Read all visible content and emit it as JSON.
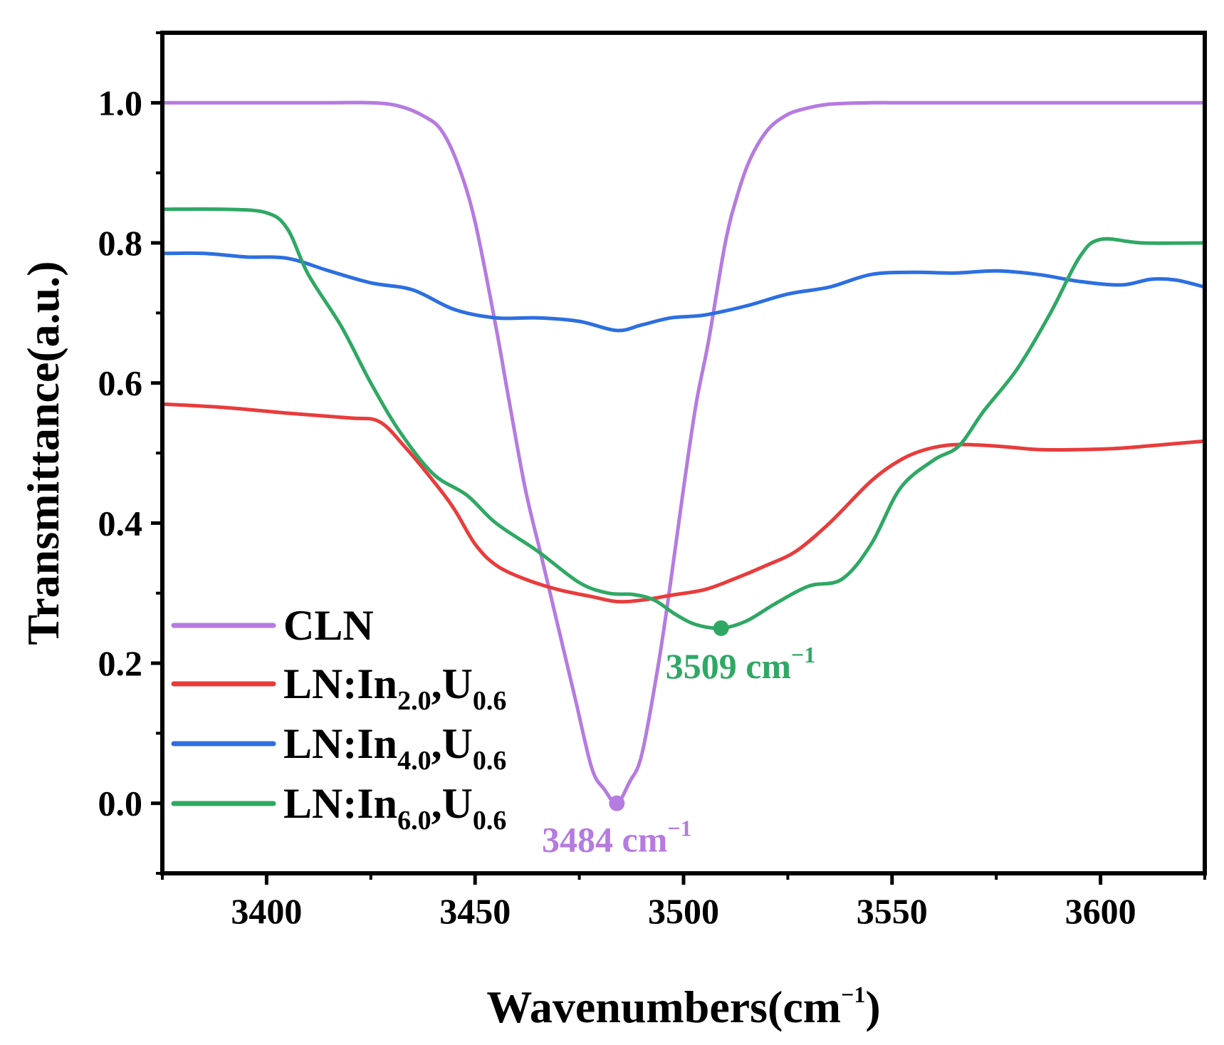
{
  "chart_data": {
    "type": "line",
    "xlabel": "Wavenumbers(cm",
    "xlabel_sup": "−1",
    "xlabel_close": ")",
    "ylabel": "Transmittance(a.u.)",
    "xlim": [
      3375,
      3625
    ],
    "ylim": [
      -0.1,
      1.1
    ],
    "xticks": [
      3400,
      3450,
      3500,
      3550,
      3600
    ],
    "xtick_labels": [
      "3400",
      "3450",
      "3500",
      "3550",
      "3600"
    ],
    "yticks": [
      0.0,
      0.2,
      0.4,
      0.6,
      0.8,
      1.0
    ],
    "ytick_labels": [
      "0.0",
      "0.2",
      "0.4",
      "0.6",
      "0.8",
      "1.0"
    ],
    "series": [
      {
        "name": "CLN",
        "label_main": "CLN",
        "sub1": "",
        "mid": "",
        "sub2": "",
        "color": "#b57be0",
        "x": [
          3375,
          3410,
          3425,
          3432,
          3438,
          3442,
          3446,
          3450,
          3455,
          3458,
          3462,
          3466,
          3470,
          3474,
          3478,
          3481,
          3484,
          3487,
          3490,
          3494,
          3497,
          3500,
          3503,
          3506,
          3510,
          3513,
          3516,
          3520,
          3524,
          3528,
          3535,
          3545,
          3560,
          3625
        ],
        "y": [
          1.0,
          1.0,
          1.0,
          0.995,
          0.98,
          0.96,
          0.91,
          0.83,
          0.68,
          0.58,
          0.45,
          0.35,
          0.25,
          0.15,
          0.05,
          0.02,
          0.0,
          0.03,
          0.07,
          0.2,
          0.32,
          0.45,
          0.57,
          0.66,
          0.8,
          0.87,
          0.92,
          0.96,
          0.98,
          0.99,
          0.998,
          1.0,
          1.0,
          1.0
        ]
      },
      {
        "name": "LN:In2.0,U0.6",
        "label_main": "LN:In",
        "sub1": "2.0",
        "mid": ",U",
        "sub2": "0.6",
        "color": "#e83c3c",
        "x": [
          3375,
          3390,
          3405,
          3420,
          3427,
          3433,
          3440,
          3445,
          3450,
          3455,
          3462,
          3470,
          3478,
          3484,
          3490,
          3497,
          3505,
          3512,
          3520,
          3527,
          3535,
          3545,
          3552,
          3558,
          3565,
          3575,
          3585,
          3595,
          3605,
          3615,
          3625
        ],
        "y": [
          0.57,
          0.565,
          0.557,
          0.55,
          0.545,
          0.51,
          0.46,
          0.42,
          0.37,
          0.34,
          0.32,
          0.305,
          0.295,
          0.288,
          0.29,
          0.297,
          0.305,
          0.32,
          0.34,
          0.36,
          0.4,
          0.46,
          0.49,
          0.505,
          0.512,
          0.51,
          0.505,
          0.505,
          0.507,
          0.512,
          0.517
        ]
      },
      {
        "name": "LN:In4.0,U0.6",
        "label_main": "LN:In",
        "sub1": "4.0",
        "mid": ",U",
        "sub2": "0.6",
        "color": "#2d6fe0",
        "x": [
          3375,
          3385,
          3395,
          3405,
          3415,
          3425,
          3435,
          3445,
          3455,
          3465,
          3475,
          3484,
          3490,
          3497,
          3505,
          3515,
          3525,
          3535,
          3545,
          3555,
          3565,
          3575,
          3585,
          3595,
          3605,
          3612,
          3618,
          3625
        ],
        "y": [
          0.785,
          0.785,
          0.78,
          0.778,
          0.76,
          0.743,
          0.733,
          0.705,
          0.693,
          0.693,
          0.688,
          0.675,
          0.683,
          0.693,
          0.697,
          0.71,
          0.727,
          0.737,
          0.755,
          0.758,
          0.757,
          0.76,
          0.755,
          0.745,
          0.74,
          0.748,
          0.747,
          0.737
        ]
      },
      {
        "name": "LN:In6.0,U0.6",
        "label_main": "LN:In",
        "sub1": "6.0",
        "mid": ",U",
        "sub2": "0.6",
        "color": "#2fa864",
        "x": [
          3375,
          3390,
          3400,
          3405,
          3410,
          3418,
          3425,
          3432,
          3440,
          3448,
          3455,
          3465,
          3475,
          3482,
          3488,
          3493,
          3498,
          3503,
          3509,
          3515,
          3522,
          3530,
          3538,
          3545,
          3552,
          3560,
          3566,
          3572,
          3580,
          3588,
          3595,
          3600,
          3610,
          3625
        ],
        "y": [
          0.848,
          0.848,
          0.843,
          0.82,
          0.755,
          0.68,
          0.6,
          0.53,
          0.47,
          0.44,
          0.4,
          0.36,
          0.315,
          0.3,
          0.298,
          0.29,
          0.27,
          0.255,
          0.25,
          0.26,
          0.285,
          0.31,
          0.32,
          0.37,
          0.45,
          0.49,
          0.51,
          0.56,
          0.62,
          0.7,
          0.78,
          0.805,
          0.8,
          0.8
        ]
      }
    ],
    "annotations": [
      {
        "text": "3484 cm",
        "sup": "−1",
        "x": 3484,
        "y": 0.0,
        "color": "#b57be0"
      },
      {
        "text": "3509 cm",
        "sup": "−1",
        "x": 3509,
        "y": 0.25,
        "color": "#2fa864"
      }
    ],
    "legend_position": "lower-left"
  }
}
